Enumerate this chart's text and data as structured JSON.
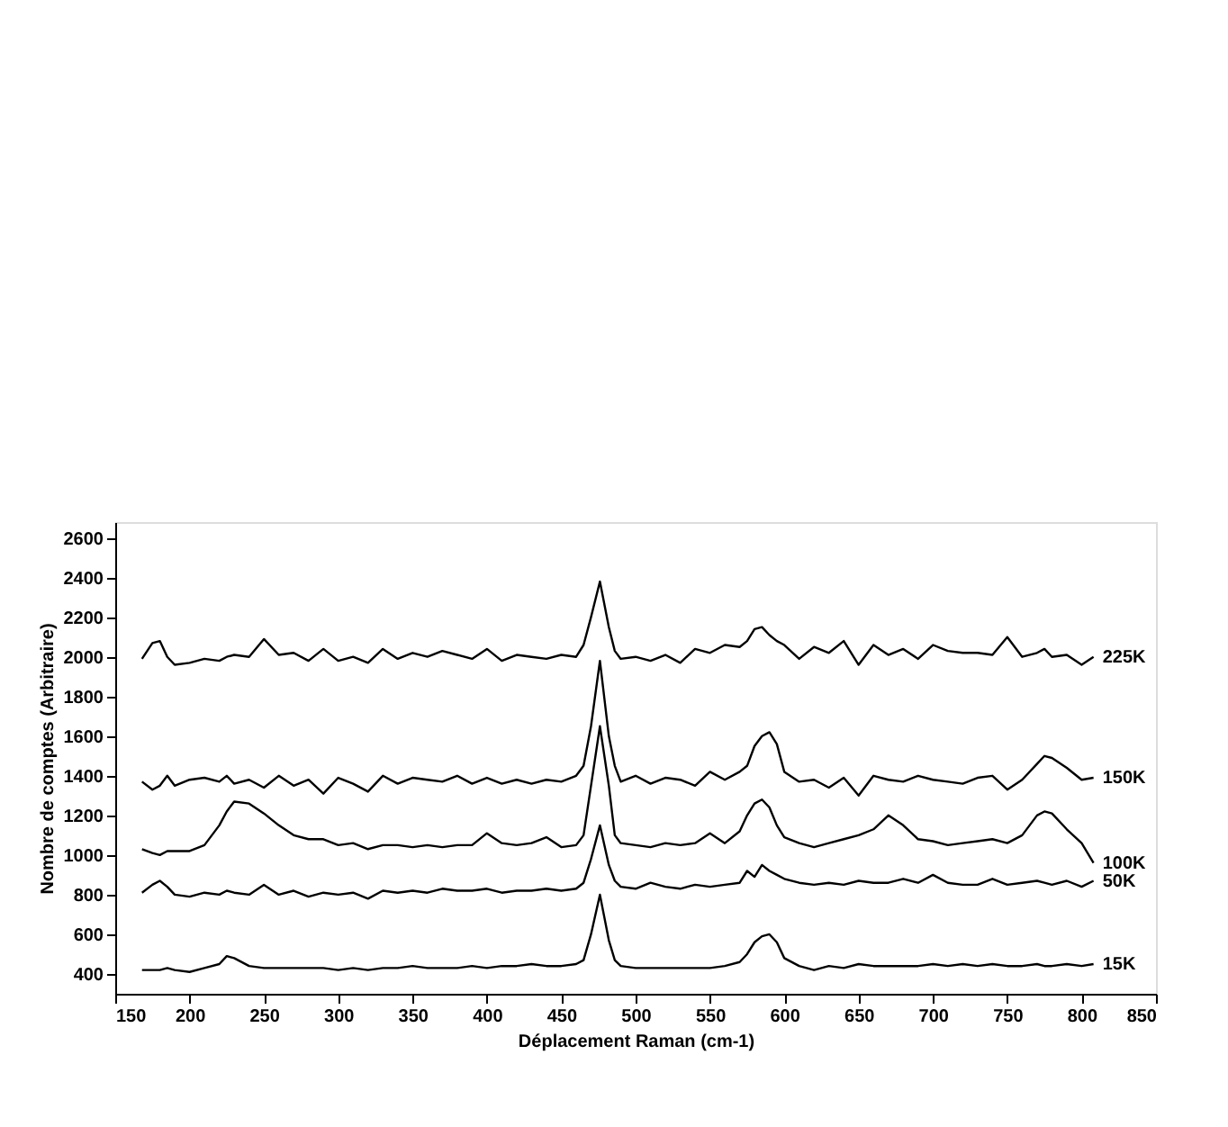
{
  "chart_data": {
    "type": "line",
    "xlabel": "Déplacement Raman (cm-1)",
    "ylabel": "Nombre de comptes (Arbitraire)",
    "xlim": [
      150,
      850
    ],
    "xticks": [
      150,
      200,
      250,
      300,
      350,
      400,
      450,
      500,
      550,
      600,
      650,
      700,
      750,
      800,
      850
    ],
    "ylim": [
      300,
      2680
    ],
    "yticks": [
      400,
      600,
      800,
      1000,
      1200,
      1400,
      1600,
      1800,
      2000,
      2200,
      2400,
      2600
    ],
    "grid": false,
    "legend": false,
    "marker": "none",
    "line_style": "solid",
    "x": [
      168,
      175,
      180,
      185,
      190,
      200,
      210,
      220,
      225,
      230,
      240,
      250,
      260,
      270,
      280,
      290,
      300,
      310,
      320,
      330,
      340,
      350,
      360,
      370,
      380,
      390,
      400,
      410,
      420,
      430,
      440,
      450,
      460,
      465,
      470,
      476,
      482,
      486,
      490,
      500,
      510,
      520,
      530,
      540,
      550,
      560,
      570,
      575,
      580,
      585,
      590,
      595,
      600,
      610,
      620,
      630,
      640,
      650,
      660,
      670,
      680,
      690,
      700,
      710,
      720,
      730,
      740,
      750,
      760,
      770,
      775,
      780,
      790,
      800,
      808
    ],
    "series": [
      {
        "name": "225K",
        "color": "#000000",
        "values": [
          1990,
          2070,
          2080,
          2000,
          1960,
          1970,
          1990,
          1980,
          2000,
          2010,
          2000,
          2090,
          2010,
          2020,
          1980,
          2040,
          1980,
          2000,
          1970,
          2040,
          1990,
          2020,
          2000,
          2030,
          2010,
          1990,
          2040,
          1980,
          2010,
          2000,
          1990,
          2010,
          2000,
          2060,
          2200,
          2380,
          2150,
          2030,
          1990,
          2000,
          1980,
          2010,
          1970,
          2040,
          2020,
          2060,
          2050,
          2080,
          2140,
          2150,
          2110,
          2080,
          2060,
          1990,
          2050,
          2020,
          2080,
          1960,
          2060,
          2010,
          2040,
          1990,
          2060,
          2030,
          2020,
          2020,
          2010,
          2100,
          2000,
          2020,
          2040,
          2000,
          2010,
          1960,
          2000
        ]
      },
      {
        "name": "150K",
        "color": "#000000",
        "values": [
          1370,
          1330,
          1350,
          1400,
          1350,
          1380,
          1390,
          1370,
          1400,
          1360,
          1380,
          1340,
          1400,
          1350,
          1380,
          1310,
          1390,
          1360,
          1320,
          1400,
          1360,
          1390,
          1380,
          1370,
          1400,
          1360,
          1390,
          1360,
          1380,
          1360,
          1380,
          1370,
          1400,
          1450,
          1650,
          1980,
          1600,
          1450,
          1370,
          1400,
          1360,
          1390,
          1380,
          1350,
          1420,
          1380,
          1420,
          1450,
          1550,
          1600,
          1620,
          1560,
          1420,
          1370,
          1380,
          1340,
          1390,
          1300,
          1400,
          1380,
          1370,
          1400,
          1380,
          1370,
          1360,
          1390,
          1400,
          1330,
          1380,
          1460,
          1500,
          1490,
          1440,
          1380,
          1390
        ]
      },
      {
        "name": "100K",
        "color": "#000000",
        "values": [
          1030,
          1010,
          1000,
          1020,
          1020,
          1020,
          1050,
          1150,
          1220,
          1270,
          1260,
          1210,
          1150,
          1100,
          1080,
          1080,
          1050,
          1060,
          1030,
          1050,
          1050,
          1040,
          1050,
          1040,
          1050,
          1050,
          1110,
          1060,
          1050,
          1060,
          1090,
          1040,
          1050,
          1100,
          1350,
          1650,
          1350,
          1100,
          1060,
          1050,
          1040,
          1060,
          1050,
          1060,
          1110,
          1060,
          1120,
          1200,
          1260,
          1280,
          1240,
          1150,
          1090,
          1060,
          1040,
          1060,
          1080,
          1100,
          1130,
          1200,
          1150,
          1080,
          1070,
          1050,
          1060,
          1070,
          1080,
          1060,
          1100,
          1200,
          1220,
          1210,
          1130,
          1060,
          960
        ]
      },
      {
        "name": "50K",
        "color": "#000000",
        "values": [
          810,
          850,
          870,
          840,
          800,
          790,
          810,
          800,
          820,
          810,
          800,
          850,
          800,
          820,
          790,
          810,
          800,
          810,
          780,
          820,
          810,
          820,
          810,
          830,
          820,
          820,
          830,
          810,
          820,
          820,
          830,
          820,
          830,
          860,
          980,
          1150,
          950,
          870,
          840,
          830,
          860,
          840,
          830,
          850,
          840,
          850,
          860,
          920,
          890,
          950,
          920,
          900,
          880,
          860,
          850,
          860,
          850,
          870,
          860,
          860,
          880,
          860,
          900,
          860,
          850,
          850,
          880,
          850,
          860,
          870,
          860,
          850,
          870,
          840,
          870
        ]
      },
      {
        "name": "15K",
        "color": "#000000",
        "values": [
          420,
          420,
          420,
          430,
          420,
          410,
          430,
          450,
          490,
          480,
          440,
          430,
          430,
          430,
          430,
          430,
          420,
          430,
          420,
          430,
          430,
          440,
          430,
          430,
          430,
          440,
          430,
          440,
          440,
          450,
          440,
          440,
          450,
          470,
          600,
          800,
          570,
          470,
          440,
          430,
          430,
          430,
          430,
          430,
          430,
          440,
          460,
          500,
          560,
          590,
          600,
          560,
          480,
          440,
          420,
          440,
          430,
          450,
          440,
          440,
          440,
          440,
          450,
          440,
          450,
          440,
          450,
          440,
          440,
          450,
          440,
          440,
          450,
          440,
          450
        ]
      }
    ]
  }
}
